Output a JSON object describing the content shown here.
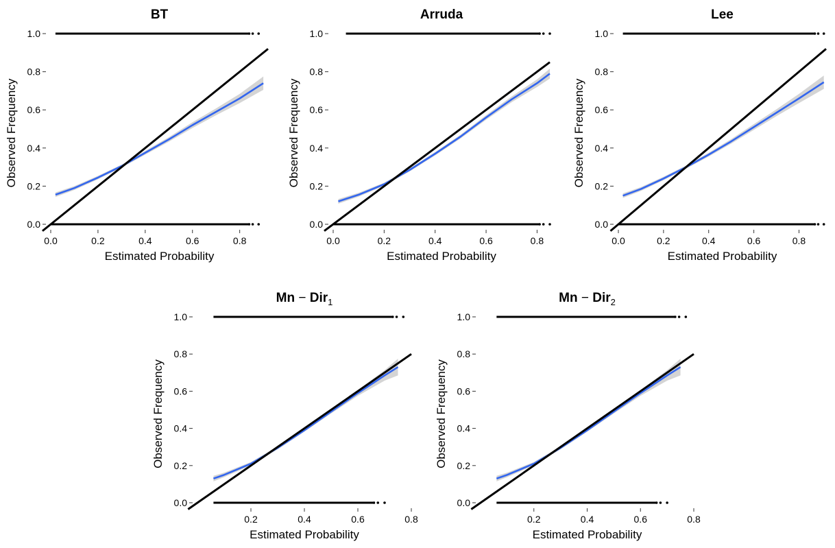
{
  "chart_data": [
    {
      "type": "line",
      "title": "BT",
      "title_sub": "",
      "xlabel": "Estimated Probability",
      "ylabel": "Observed Frequency",
      "xlim": [
        0.0,
        0.92
      ],
      "ylim": [
        0.0,
        1.0
      ],
      "x_ticks": [
        "0.0",
        "0.2",
        "0.4",
        "0.6",
        "0.8"
      ],
      "y_ticks": [
        "0.0",
        "0.2",
        "0.4",
        "0.6",
        "0.8",
        "1.0"
      ],
      "grid": false,
      "reference_line": {
        "x": [
          0.0,
          0.92
        ],
        "y": [
          0.0,
          0.92
        ]
      },
      "rug_points": {
        "y0_range": [
          0.0,
          0.88
        ],
        "y1_range": [
          0.02,
          0.88
        ]
      },
      "series": [
        {
          "x": [
            0.02,
            0.1,
            0.2,
            0.3,
            0.4,
            0.5,
            0.6,
            0.7,
            0.8,
            0.9
          ],
          "y": [
            0.155,
            0.19,
            0.245,
            0.305,
            0.375,
            0.445,
            0.52,
            0.59,
            0.66,
            0.74
          ],
          "ci": [
            0.012,
            0.01,
            0.009,
            0.008,
            0.01,
            0.012,
            0.015,
            0.018,
            0.024,
            0.035
          ]
        }
      ]
    },
    {
      "type": "line",
      "title": "Arruda",
      "title_sub": "",
      "xlabel": "Estimated Probability",
      "ylabel": "Observed Frequency",
      "xlim": [
        0.0,
        0.85
      ],
      "ylim": [
        0.0,
        1.0
      ],
      "x_ticks": [
        "0.0",
        "0.2",
        "0.4",
        "0.6",
        "0.8"
      ],
      "y_ticks": [
        "0.0",
        "0.2",
        "0.4",
        "0.6",
        "0.8",
        "1.0"
      ],
      "grid": false,
      "reference_line": {
        "x": [
          0.0,
          0.85
        ],
        "y": [
          0.0,
          0.85
        ]
      },
      "rug_points": {
        "y0_range": [
          0.0,
          0.85
        ],
        "y1_range": [
          0.05,
          0.85
        ]
      },
      "series": [
        {
          "x": [
            0.02,
            0.1,
            0.2,
            0.3,
            0.4,
            0.5,
            0.6,
            0.7,
            0.8,
            0.85
          ],
          "y": [
            0.12,
            0.155,
            0.21,
            0.285,
            0.37,
            0.46,
            0.56,
            0.655,
            0.74,
            0.79
          ],
          "ci": [
            0.012,
            0.01,
            0.008,
            0.008,
            0.009,
            0.01,
            0.012,
            0.015,
            0.02,
            0.026
          ]
        }
      ]
    },
    {
      "type": "line",
      "title": "Lee",
      "title_sub": "",
      "xlabel": "Estimated Probability",
      "ylabel": "Observed Frequency",
      "xlim": [
        0.0,
        0.92
      ],
      "ylim": [
        0.0,
        1.0
      ],
      "x_ticks": [
        "0.0",
        "0.2",
        "0.4",
        "0.6",
        "0.8"
      ],
      "y_ticks": [
        "0.0",
        "0.2",
        "0.4",
        "0.6",
        "0.8",
        "1.0"
      ],
      "grid": false,
      "reference_line": {
        "x": [
          0.0,
          0.92
        ],
        "y": [
          0.0,
          0.92
        ]
      },
      "rug_points": {
        "y0_range": [
          0.0,
          0.91
        ],
        "y1_range": [
          0.02,
          0.91
        ]
      },
      "series": [
        {
          "x": [
            0.02,
            0.1,
            0.2,
            0.3,
            0.4,
            0.5,
            0.6,
            0.7,
            0.8,
            0.91
          ],
          "y": [
            0.15,
            0.185,
            0.24,
            0.3,
            0.365,
            0.435,
            0.51,
            0.585,
            0.66,
            0.745
          ],
          "ci": [
            0.012,
            0.01,
            0.009,
            0.008,
            0.01,
            0.012,
            0.015,
            0.018,
            0.024,
            0.035
          ]
        }
      ]
    },
    {
      "type": "line",
      "title": "Mn",
      "title_sub": "1",
      "xlabel": "Estimated Probability",
      "ylabel": "Observed Frequency",
      "xlim": [
        0.0,
        0.8
      ],
      "ylim": [
        0.0,
        1.0
      ],
      "x_ticks": [
        "0.2",
        "0.4",
        "0.6",
        "0.8"
      ],
      "y_ticks": [
        "0.0",
        "0.2",
        "0.4",
        "0.6",
        "0.8",
        "1.0"
      ],
      "grid": false,
      "reference_line": {
        "x": [
          0.0,
          0.8
        ],
        "y": [
          0.0,
          0.8
        ]
      },
      "rug_points": {
        "y0_range": [
          0.06,
          0.7
        ],
        "y1_range": [
          0.06,
          0.77
        ]
      },
      "series": [
        {
          "x": [
            0.06,
            0.1,
            0.2,
            0.3,
            0.4,
            0.5,
            0.6,
            0.7,
            0.75
          ],
          "y": [
            0.13,
            0.15,
            0.21,
            0.295,
            0.39,
            0.49,
            0.59,
            0.685,
            0.73
          ],
          "ci": [
            0.015,
            0.012,
            0.009,
            0.008,
            0.008,
            0.01,
            0.015,
            0.028,
            0.045
          ]
        }
      ]
    },
    {
      "type": "line",
      "title": "Mn",
      "title_sub": "2",
      "xlabel": "Estimated Probability",
      "ylabel": "Observed Frequency",
      "xlim": [
        0.0,
        0.8
      ],
      "ylim": [
        0.0,
        1.0
      ],
      "x_ticks": [
        "0.2",
        "0.4",
        "0.6",
        "0.8"
      ],
      "y_ticks": [
        "0.0",
        "0.2",
        "0.4",
        "0.6",
        "0.8",
        "1.0"
      ],
      "grid": false,
      "reference_line": {
        "x": [
          0.0,
          0.8
        ],
        "y": [
          0.0,
          0.8
        ]
      },
      "rug_points": {
        "y0_range": [
          0.06,
          0.7
        ],
        "y1_range": [
          0.06,
          0.77
        ]
      },
      "series": [
        {
          "x": [
            0.06,
            0.1,
            0.2,
            0.3,
            0.4,
            0.5,
            0.6,
            0.7,
            0.75
          ],
          "y": [
            0.13,
            0.15,
            0.21,
            0.295,
            0.39,
            0.49,
            0.59,
            0.685,
            0.73
          ],
          "ci": [
            0.015,
            0.012,
            0.009,
            0.008,
            0.008,
            0.01,
            0.015,
            0.028,
            0.045
          ]
        }
      ]
    }
  ],
  "colors": {
    "fit": "#3366ee",
    "band": "#cccccc",
    "reference": "#000000",
    "points": "#000000"
  }
}
